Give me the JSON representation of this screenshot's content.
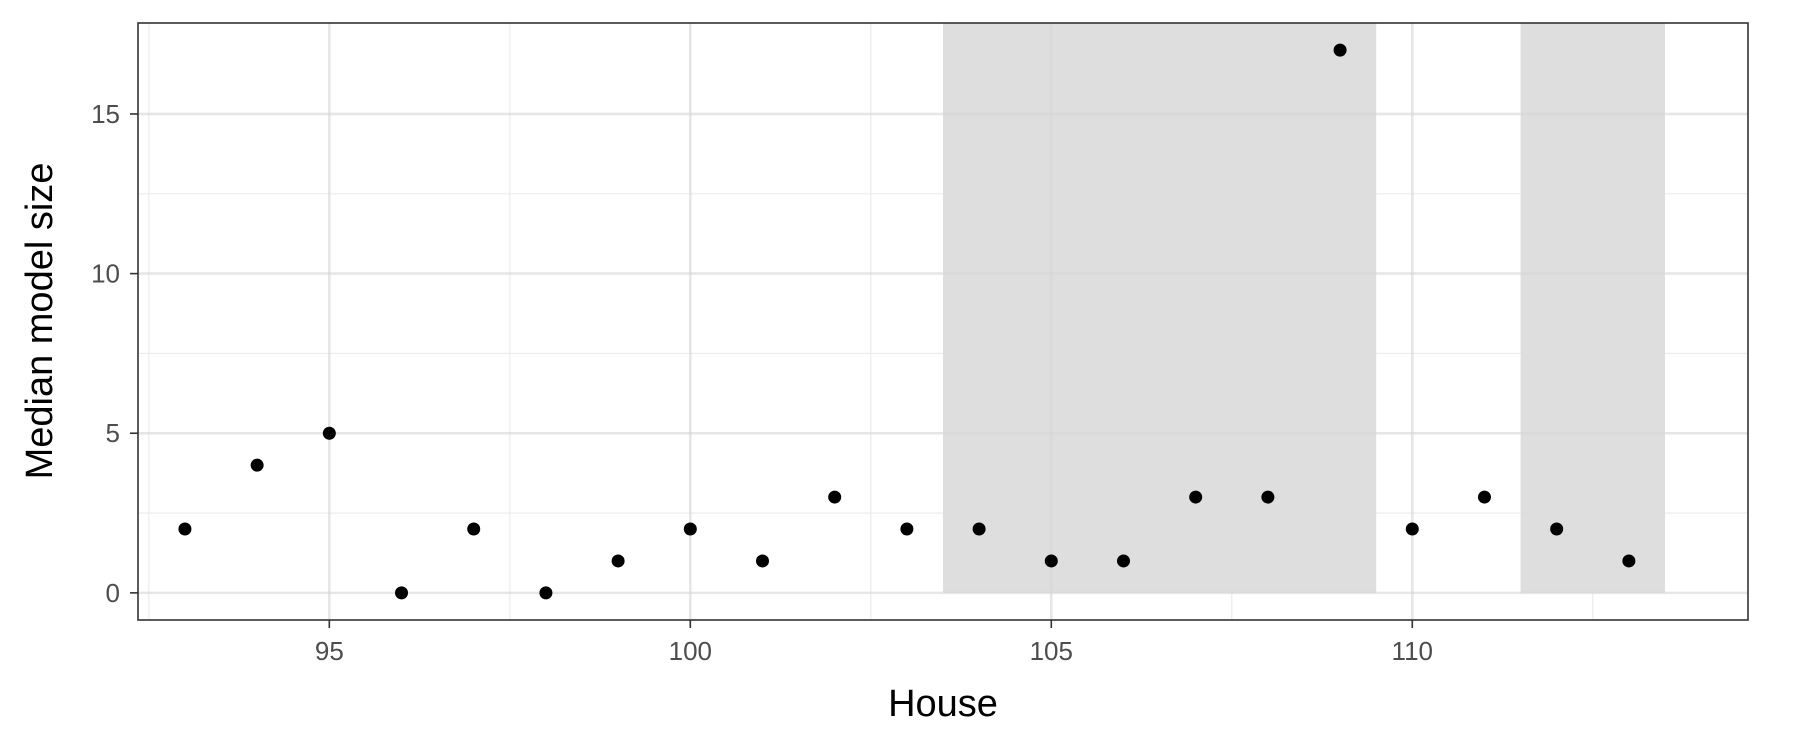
{
  "chart_data": {
    "type": "scatter",
    "title": "",
    "xlabel": "House",
    "ylabel": "Median model size",
    "xlim": [
      92.35,
      114.65
    ],
    "ylim": [
      -0.85,
      17.85
    ],
    "x_ticks": [
      95,
      100,
      105,
      110
    ],
    "y_ticks": [
      0,
      5,
      10,
      15
    ],
    "x_minor_ticks": [
      92.5,
      97.5,
      102.5,
      107.5,
      112.5
    ],
    "y_minor_ticks": [
      2.5,
      7.5,
      12.5
    ],
    "grid": true,
    "theme": "bw",
    "point_color": "#000000",
    "shaded_color": "#dedede",
    "shaded_ranges": [
      [
        103.5,
        109.5
      ],
      [
        111.5,
        113.5
      ]
    ],
    "points": [
      {
        "x": 93,
        "y": 2
      },
      {
        "x": 94,
        "y": 4
      },
      {
        "x": 95,
        "y": 5
      },
      {
        "x": 96,
        "y": 0
      },
      {
        "x": 97,
        "y": 2
      },
      {
        "x": 98,
        "y": 0
      },
      {
        "x": 99,
        "y": 1
      },
      {
        "x": 100,
        "y": 2
      },
      {
        "x": 101,
        "y": 1
      },
      {
        "x": 102,
        "y": 3
      },
      {
        "x": 103,
        "y": 2
      },
      {
        "x": 104,
        "y": 2
      },
      {
        "x": 105,
        "y": 1
      },
      {
        "x": 106,
        "y": 1
      },
      {
        "x": 107,
        "y": 3
      },
      {
        "x": 108,
        "y": 3
      },
      {
        "x": 109,
        "y": 17
      },
      {
        "x": 110,
        "y": 2
      },
      {
        "x": 111,
        "y": 3
      },
      {
        "x": 112,
        "y": 2
      },
      {
        "x": 113,
        "y": 1
      }
    ]
  }
}
